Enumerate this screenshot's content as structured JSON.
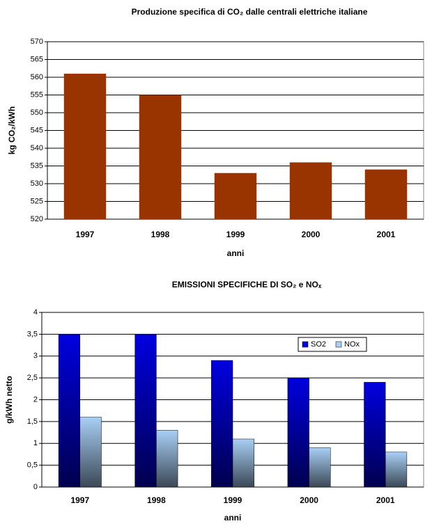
{
  "chart_data": [
    {
      "type": "bar",
      "title": "Produzione specifica di CO₂ dalle centrali elettriche italiane",
      "x_label": "anni",
      "y_label": "kg CO₂/kWh",
      "categories": [
        "1997",
        "1998",
        "1999",
        "2000",
        "2001"
      ],
      "values": [
        561,
        555,
        533,
        536,
        534
      ],
      "color": "#993300",
      "ylim": [
        520,
        570
      ],
      "yticks": [
        520,
        525,
        530,
        535,
        540,
        545,
        550,
        555,
        560,
        565,
        570
      ],
      "grid": true
    },
    {
      "type": "bar",
      "title": "EMISSIONI SPECIFICHE DI SO₂ e NOₓ",
      "x_label": "anni",
      "y_label": "g/kWh netto",
      "categories": [
        "1997",
        "1998",
        "1999",
        "2000",
        "2001"
      ],
      "series": [
        {
          "name": "SO2",
          "color": "#0000e0",
          "values": [
            3.5,
            3.5,
            2.9,
            2.5,
            2.4
          ]
        },
        {
          "name": "NOx",
          "color": "#a8cff5",
          "values": [
            1.6,
            1.3,
            1.1,
            0.9,
            0.8
          ]
        }
      ],
      "ylim": [
        0,
        4
      ],
      "yticks": [
        0,
        {
          "value": 0.5,
          "label": "0,5"
        },
        1,
        {
          "value": 1.5,
          "label": "1,5"
        },
        2,
        {
          "value": 2.5,
          "label": "2,5"
        },
        3,
        {
          "value": 3.5,
          "label": "3,5"
        },
        4
      ],
      "grid": true,
      "legend": "upper right"
    }
  ]
}
